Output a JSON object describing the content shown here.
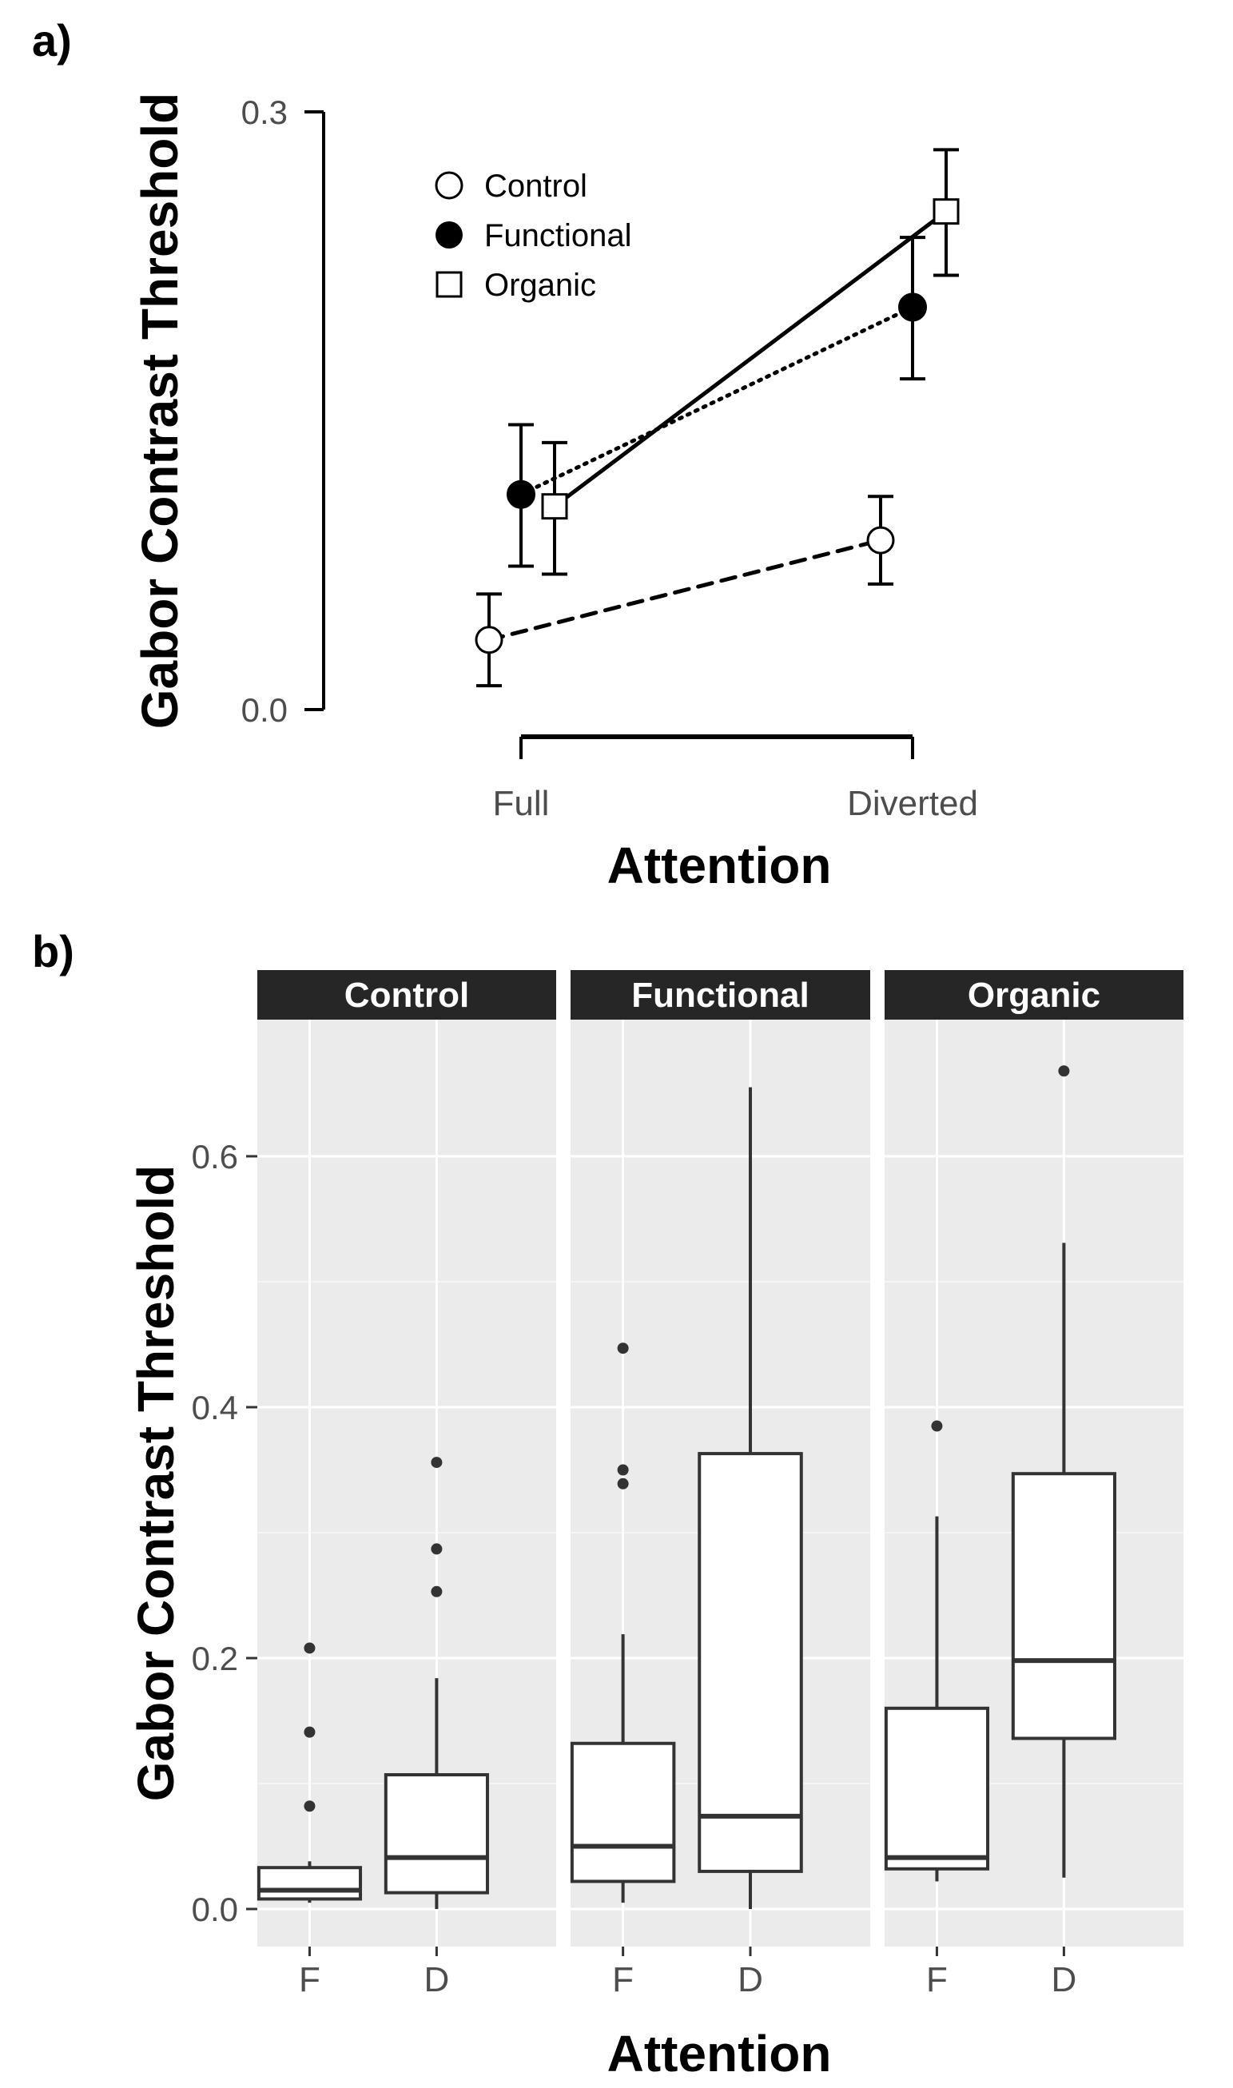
{
  "panel_a": {
    "tag": "a)"
  },
  "panel_b": {
    "tag": "b)"
  },
  "chart_data": [
    {
      "type": "line",
      "title": "",
      "xlabel": "Attention",
      "ylabel": "Gabor Contrast Threshold",
      "categories": [
        "Full",
        "Diverted"
      ],
      "ylim": [
        0.0,
        0.3
      ],
      "yticks": [
        "0.0",
        "0.3"
      ],
      "grid": false,
      "legend_position": "top-left",
      "series": [
        {
          "name": "Control",
          "marker": "open-circle",
          "line": "dashed",
          "color": "#000000",
          "values": [
            0.035,
            0.085
          ],
          "error_low": [
            0.012,
            0.063
          ],
          "error_high": [
            0.058,
            0.107
          ]
        },
        {
          "name": "Functional",
          "marker": "filled-circle",
          "line": "dotted",
          "color": "#000000",
          "values": [
            0.108,
            0.202
          ],
          "error_low": [
            0.072,
            0.166
          ],
          "error_high": [
            0.143,
            0.237
          ]
        },
        {
          "name": "Organic",
          "marker": "open-square",
          "line": "solid",
          "color": "#000000",
          "values": [
            0.102,
            0.25
          ],
          "error_low": [
            0.068,
            0.218
          ],
          "error_high": [
            0.134,
            0.281
          ]
        }
      ]
    },
    {
      "type": "box",
      "title": "",
      "xlabel": "Attention",
      "ylabel": "Gabor Contrast Threshold",
      "ylim": [
        0.0,
        0.7
      ],
      "yticks": [
        "0.0",
        "0.2",
        "0.4",
        "0.6"
      ],
      "grid": true,
      "facets": [
        {
          "label": "Control",
          "groups": [
            {
              "label": "F",
              "min": 0.005,
              "q1": 0.008,
              "median": 0.015,
              "q3": 0.033,
              "max": 0.038,
              "outliers": [
                0.082,
                0.141,
                0.208
              ]
            },
            {
              "label": "D",
              "min": 0.0,
              "q1": 0.013,
              "median": 0.041,
              "q3": 0.107,
              "max": 0.184,
              "outliers": [
                0.253,
                0.287,
                0.356
              ]
            }
          ]
        },
        {
          "label": "Functional",
          "groups": [
            {
              "label": "F",
              "min": 0.005,
              "q1": 0.022,
              "median": 0.05,
              "q3": 0.132,
              "max": 0.219,
              "outliers": [
                0.339,
                0.35,
                0.447
              ]
            },
            {
              "label": "D",
              "min": 0.0,
              "q1": 0.03,
              "median": 0.074,
              "q3": 0.363,
              "max": 0.655,
              "outliers": []
            }
          ]
        },
        {
          "label": "Organic",
          "groups": [
            {
              "label": "F",
              "min": 0.022,
              "q1": 0.032,
              "median": 0.041,
              "q3": 0.16,
              "max": 0.313,
              "outliers": [
                0.385
              ]
            },
            {
              "label": "D",
              "min": 0.025,
              "q1": 0.136,
              "median": 0.198,
              "q3": 0.347,
              "max": 0.531,
              "outliers": [
                0.668
              ]
            }
          ]
        }
      ]
    }
  ]
}
